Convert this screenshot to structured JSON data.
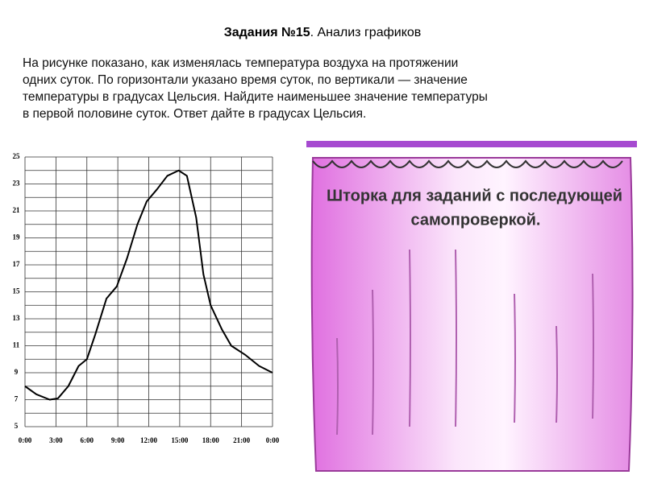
{
  "header": {
    "title_bold": "Задания №15",
    "title_rest": ". Анализ графиков"
  },
  "text": {
    "lines": [
      "На рисунке показано, как изменялась температура воздуха на протяжении",
      "одних суток. По горизонтали указано время суток, по вертикали — значение",
      "температуры в градусах Цельсия. Найдите наименьшее значение температуры",
      "в первой половине суток. Ответ дайте в градусах Цельсия."
    ]
  },
  "chart_data": {
    "type": "line",
    "x": [
      0,
      1.1,
      2.4,
      3.2,
      4.2,
      5.2,
      6,
      6.8,
      7.9,
      8.9,
      9.9,
      10.9,
      11.8,
      12.8,
      13.8,
      14.9,
      15.7,
      16.6,
      17.3,
      18,
      19.1,
      20,
      21.4,
      22.7,
      24
    ],
    "values": [
      8,
      7.4,
      7,
      7.1,
      8,
      9.5,
      10,
      11.8,
      14.5,
      15.4,
      17.5,
      20,
      21.7,
      22.6,
      23.6,
      24,
      23.6,
      20.5,
      16.3,
      14,
      12.2,
      11,
      10.3,
      9.5,
      9
    ],
    "color": "#000000",
    "xlim": [
      0,
      24
    ],
    "xticks": [
      {
        "value": 0,
        "label": "0:00"
      },
      {
        "value": 3,
        "label": "3:00"
      },
      {
        "value": 6,
        "label": "6:00"
      },
      {
        "value": 9,
        "label": "9:00"
      },
      {
        "value": 12,
        "label": "12:00"
      },
      {
        "value": 15,
        "label": "15:00"
      },
      {
        "value": 18,
        "label": "18:00"
      },
      {
        "value": 21,
        "label": "21:00"
      },
      {
        "value": 24,
        "label": "0:00"
      }
    ],
    "ylim": [
      5,
      25
    ],
    "yticks": [
      5,
      7,
      9,
      11,
      13,
      15,
      17,
      19,
      21,
      23,
      25
    ],
    "y_minor_ticks": [
      6,
      8,
      10,
      12,
      14,
      16,
      18,
      20,
      22,
      24
    ],
    "grid": true
  },
  "curtain": {
    "lines": [
      "Шторка для заданий с последующей",
      "самопроверкой."
    ]
  }
}
